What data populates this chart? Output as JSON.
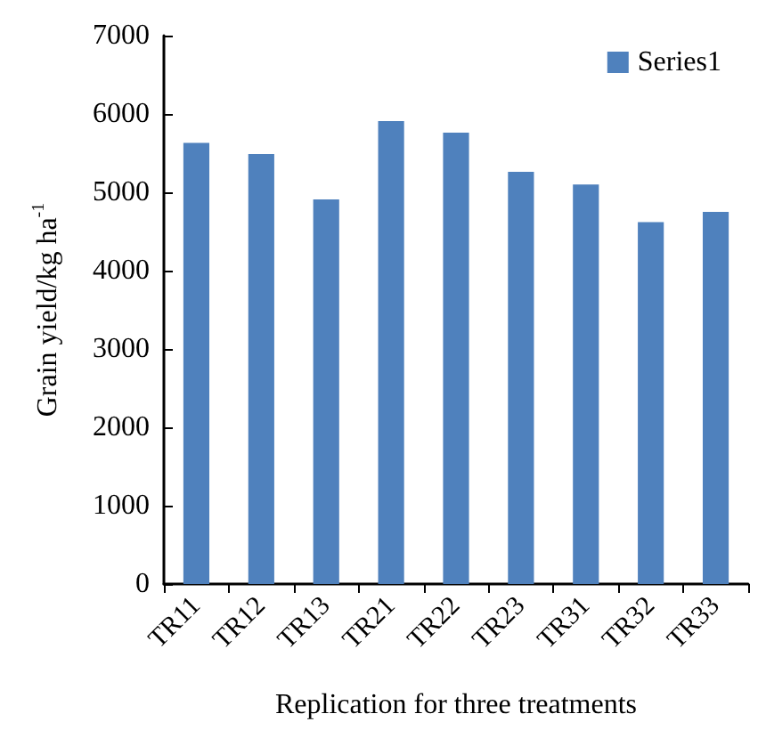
{
  "chart_data": {
    "type": "bar",
    "xlabel": "Replication for three treatments",
    "ylabel": "Grain yield/kg ha$^{-1}$",
    "categories": [
      "TR11",
      "TR12",
      "TR13",
      "TR21",
      "TR22",
      "TR23",
      "TR31",
      "TR32",
      "TR33"
    ],
    "series": [
      {
        "name": "Series1",
        "color": "#4f81bd",
        "values": [
          5630,
          5490,
          4910,
          5910,
          5760,
          5260,
          5100,
          4620,
          4750
        ]
      }
    ],
    "ylim": [
      0,
      7000
    ],
    "yticks": [
      0,
      1000,
      2000,
      3000,
      4000,
      5000,
      6000,
      7000
    ],
    "grid": false,
    "legend": "top right"
  }
}
